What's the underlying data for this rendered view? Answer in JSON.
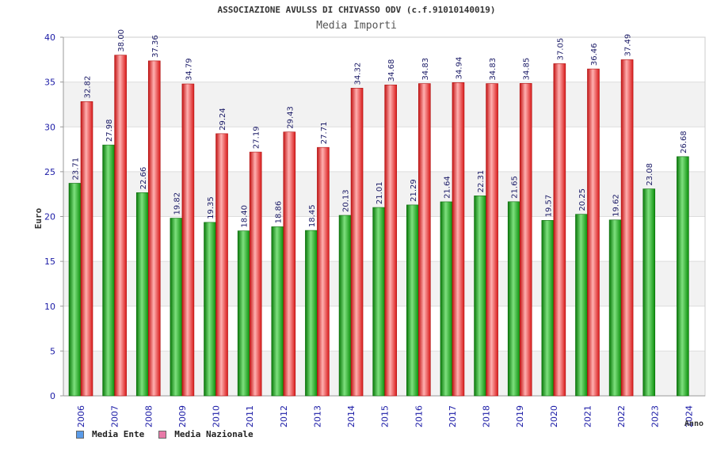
{
  "chart_data": {
    "type": "bar",
    "title": "ASSOCIAZIONE AVULSS DI CHIVASSO ODV (c.f.91010140019)",
    "subtitle": "Media Importi",
    "xlabel": "Anno",
    "ylabel": "Euro",
    "ylim": [
      0,
      40
    ],
    "yticks": [
      0,
      5,
      10,
      15,
      20,
      25,
      30,
      35,
      40
    ],
    "categories": [
      "2006",
      "2007",
      "2008",
      "2009",
      "2010",
      "2011",
      "2012",
      "2013",
      "2014",
      "2015",
      "2016",
      "2017",
      "2018",
      "2019",
      "2020",
      "2021",
      "2022",
      "2023",
      "2024"
    ],
    "series": [
      {
        "name": "Media Ente",
        "color": "#11aa11",
        "legend_color": "#5a9be8",
        "values": [
          23.71,
          27.98,
          22.66,
          19.82,
          19.35,
          18.4,
          18.86,
          18.45,
          20.13,
          21.01,
          21.29,
          21.64,
          22.31,
          21.65,
          19.57,
          20.25,
          19.62,
          23.08,
          26.68
        ],
        "labels": [
          "23.71",
          "27.98",
          "22.66",
          "19.82",
          "19.35",
          "18.40",
          "18.86",
          "18.45",
          "20.13",
          "21.01",
          "21.29",
          "21.64",
          "22.31",
          "21.65",
          "19.57",
          "20.25",
          "19.62",
          "23.08",
          "26.68"
        ]
      },
      {
        "name": "Media Nazionale",
        "color": "#ee2222",
        "legend_color": "#e87aa8",
        "values": [
          32.82,
          38.0,
          37.36,
          34.79,
          29.24,
          27.19,
          29.43,
          27.71,
          34.32,
          34.68,
          34.83,
          34.94,
          34.83,
          34.85,
          37.05,
          36.46,
          37.49,
          null,
          null
        ],
        "labels": [
          "32.82",
          "38.00",
          "37.36",
          "34.79",
          "29.24",
          "27.19",
          "29.43",
          "27.71",
          "34.32",
          "34.68",
          "34.83",
          "34.94",
          "34.83",
          "34.85",
          "37.05",
          "36.46",
          "37.49",
          null,
          null
        ]
      }
    ],
    "legend_position": "bottom-left",
    "grid": true
  }
}
